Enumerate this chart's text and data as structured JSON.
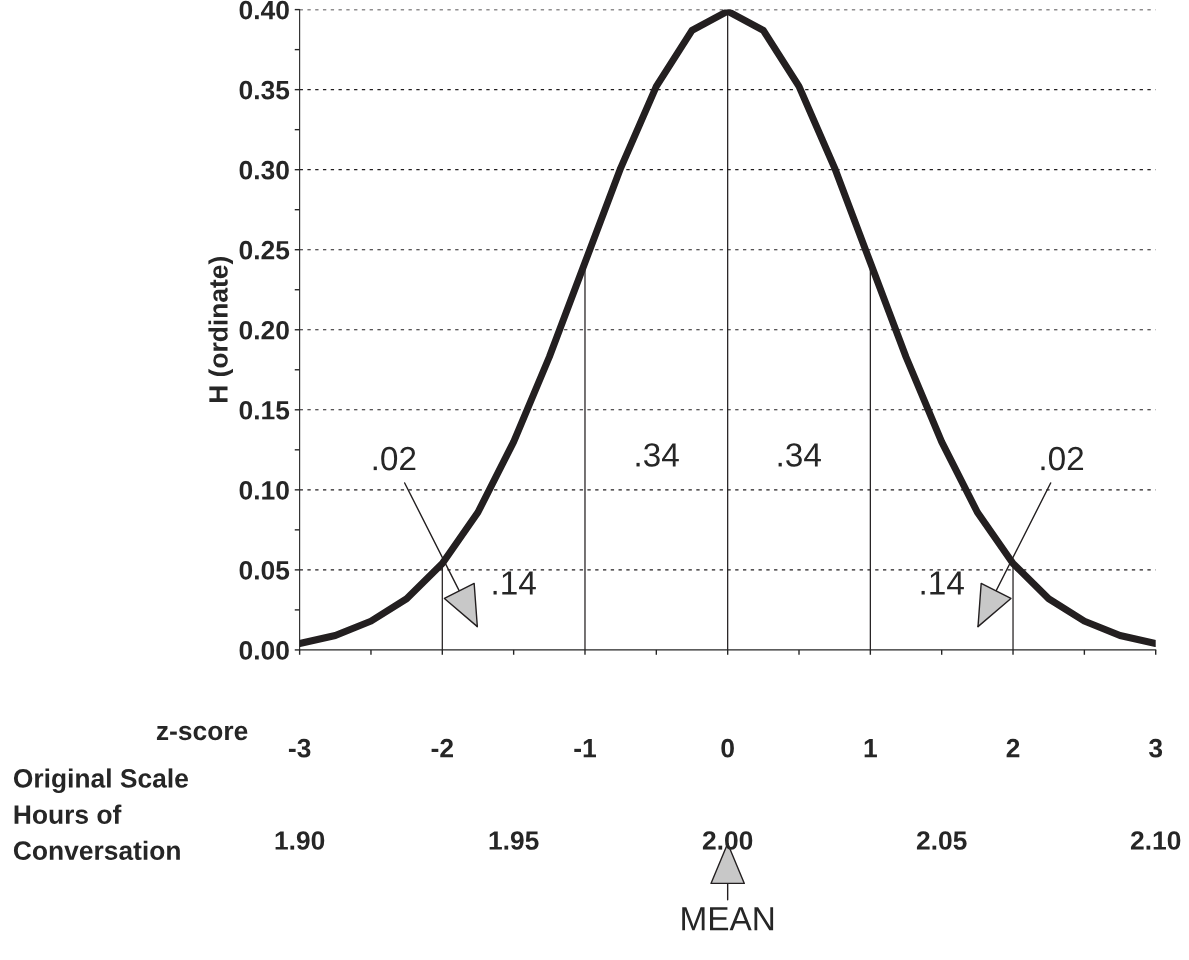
{
  "chart_data": {
    "type": "line",
    "xlabel": "z-score",
    "ylabel": "H (ordinate)",
    "x2label": "Original Scale\nHours of\nConversation",
    "x": [
      -3,
      -2.75,
      -2.5,
      -2.25,
      -2,
      -1.75,
      -1.5,
      -1.25,
      -1,
      -0.75,
      -0.5,
      -0.25,
      0,
      0.25,
      0.5,
      0.75,
      1,
      1.25,
      1.5,
      1.75,
      2,
      2.25,
      2.5,
      2.75,
      3
    ],
    "series": [
      {
        "color": "#231f20",
        "values": [
          0.004,
          0.009,
          0.018,
          0.032,
          0.054,
          0.086,
          0.13,
          0.183,
          0.242,
          0.301,
          0.352,
          0.387,
          0.399,
          0.387,
          0.352,
          0.301,
          0.242,
          0.183,
          0.13,
          0.086,
          0.054,
          0.032,
          0.018,
          0.009,
          0.004
        ]
      }
    ],
    "xlim": [
      -3,
      3
    ],
    "ylim": [
      0,
      0.4
    ],
    "xticks": [
      -3,
      {
        "value": -2.5,
        "label": null
      },
      -2,
      {
        "value": -1.5,
        "label": null
      },
      -1,
      {
        "value": -0.5,
        "label": null
      },
      0,
      {
        "value": 0.5,
        "label": null
      },
      1,
      {
        "value": 1.5,
        "label": null
      },
      2,
      {
        "value": 2.5,
        "label": null
      },
      3
    ],
    "yticks": [
      {
        "value": 0,
        "label": "0.00"
      },
      {
        "value": 0.025,
        "label": null
      },
      {
        "value": 0.05,
        "label": "0.05"
      },
      {
        "value": 0.075,
        "label": null
      },
      {
        "value": 0.1,
        "label": "0.10"
      },
      {
        "value": 0.125,
        "label": null
      },
      {
        "value": 0.15,
        "label": "0.15"
      },
      {
        "value": 0.175,
        "label": null
      },
      {
        "value": 0.2,
        "label": "0.20"
      },
      {
        "value": 0.225,
        "label": null
      },
      {
        "value": 0.25,
        "label": "0.25"
      },
      {
        "value": 0.275,
        "label": null
      },
      {
        "value": 0.3,
        "label": "0.30"
      },
      {
        "value": 0.325,
        "label": null
      },
      {
        "value": 0.35,
        "label": "0.35"
      },
      {
        "value": 0.375,
        "label": null
      },
      {
        "value": 0.4,
        "label": "0.40"
      }
    ],
    "x2lim": [
      1.9,
      2.1
    ],
    "x2ticks": [
      {
        "value": 1.9,
        "label": "1.90"
      },
      {
        "value": 1.95,
        "label": "1.95"
      },
      {
        "value": 2.0,
        "label": "2.00"
      },
      {
        "value": 2.05,
        "label": "2.05"
      },
      {
        "value": 2.1,
        "label": "2.10"
      }
    ],
    "grid": "y",
    "line_style": "solid",
    "marker": "none",
    "legend": false,
    "ref_lines": [
      {
        "axis": "x",
        "value": -2
      },
      {
        "axis": "x",
        "value": -1
      },
      {
        "axis": "x",
        "value": 0
      },
      {
        "axis": "x",
        "value": 1
      },
      {
        "axis": "x",
        "value": 2
      }
    ],
    "annotations": [
      ".34",
      ".34",
      ".14",
      ".14",
      ".02",
      ".02",
      "MEAN"
    ]
  }
}
